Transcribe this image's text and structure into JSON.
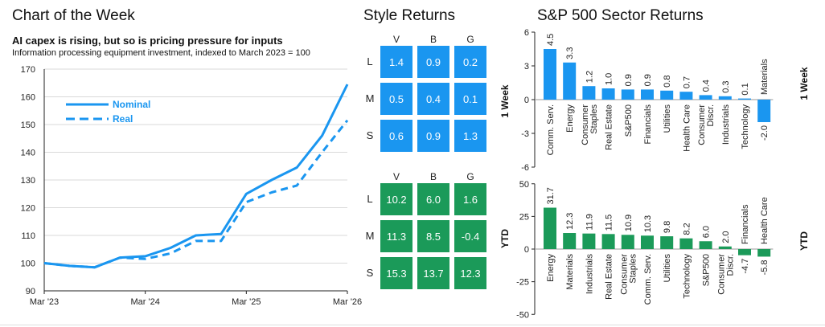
{
  "chart_data": [
    {
      "type": "line",
      "title": "Chart of the Week",
      "subtitle": "AI capex is rising, but so is pricing pressure for inputs",
      "note": "Information processing equipment investment, indexed to March 2023 = 100",
      "ylim": [
        90,
        170
      ],
      "yticks": [
        90,
        100,
        110,
        120,
        130,
        140,
        150,
        160,
        170
      ],
      "xlim": [
        0,
        12
      ],
      "xticks": [
        {
          "x": 0,
          "label": "Mar '23"
        },
        {
          "x": 4,
          "label": "Mar '24"
        },
        {
          "x": 8,
          "label": "Mar '25"
        },
        {
          "x": 12,
          "label": "Mar '26"
        }
      ],
      "legend_position": "top-left",
      "series": [
        {
          "name": "Nominal",
          "style": "solid",
          "color": "#1a96f0",
          "x": [
            0,
            1,
            2,
            3,
            4,
            5,
            6,
            7,
            8,
            9,
            10,
            11,
            12
          ],
          "values": [
            100,
            99,
            98.5,
            102,
            102.5,
            105.5,
            110,
            110.5,
            125,
            130,
            134.5,
            146,
            164.5
          ]
        },
        {
          "name": "Real",
          "style": "dashed",
          "color": "#1a96f0",
          "x": [
            0,
            1,
            2,
            3,
            4,
            5,
            6,
            7,
            8,
            9,
            10,
            11,
            12
          ],
          "values": [
            100,
            99,
            98.5,
            102,
            101.5,
            103.5,
            108,
            108,
            122,
            125.5,
            128,
            140,
            151.5
          ]
        }
      ]
    },
    {
      "type": "table",
      "title": "Style Returns",
      "columns": [
        "V",
        "B",
        "G"
      ],
      "rows": [
        "L",
        "M",
        "S"
      ],
      "panels": [
        {
          "label": "1 Week",
          "color": "#1a96f0",
          "values": [
            [
              "1.4",
              "0.9",
              "0.2"
            ],
            [
              "0.5",
              "0.4",
              "0.1"
            ],
            [
              "0.6",
              "0.9",
              "1.3"
            ]
          ]
        },
        {
          "label": "YTD",
          "color": "#1b9a59",
          "values": [
            [
              "10.2",
              "6.0",
              "1.6"
            ],
            [
              "11.3",
              "8.5",
              "-0.4"
            ],
            [
              "15.3",
              "13.7",
              "12.3"
            ]
          ]
        }
      ]
    },
    {
      "type": "bar",
      "title": "S&P 500 Sector Returns",
      "panels": [
        {
          "label": "1 Week",
          "color": "#1a96f0",
          "ylim": [
            -6,
            6
          ],
          "yticks": [
            -6,
            -3,
            0,
            3,
            6
          ],
          "categories": [
            "Comm. Serv.",
            "Energy",
            "Consumer Staples",
            "Real Estate",
            "S&P500",
            "Financials",
            "Utilities",
            "Health Care",
            "Consumer Discr.",
            "Industrials",
            "Technology",
            "Materials"
          ],
          "category_lines": [
            [
              "Comm. Serv."
            ],
            [
              "Energy"
            ],
            [
              "Consumer",
              "Staples"
            ],
            [
              "Real Estate"
            ],
            [
              "S&P500"
            ],
            [
              "Financials"
            ],
            [
              "Utilities"
            ],
            [
              "Health Care"
            ],
            [
              "Consumer",
              "Discr."
            ],
            [
              "Industrials"
            ],
            [
              "Technology"
            ],
            [
              "Materials"
            ]
          ],
          "values": [
            4.5,
            3.3,
            1.2,
            1.0,
            0.9,
            0.9,
            0.8,
            0.7,
            0.4,
            0.3,
            0.1,
            -2.0
          ],
          "value_labels": [
            "4.5",
            "3.3",
            "1.2",
            "1.0",
            "0.9",
            "0.9",
            "0.8",
            "0.7",
            "0.4",
            "0.3",
            "0.1",
            "-2.0"
          ]
        },
        {
          "label": "YTD",
          "color": "#1b9a59",
          "ylim": [
            -50,
            50
          ],
          "yticks": [
            -50,
            -25,
            0,
            25,
            50
          ],
          "categories": [
            "Energy",
            "Materials",
            "Industrials",
            "Real Estate",
            "Consumer Staples",
            "Comm. Serv.",
            "Utilities",
            "Technology",
            "S&P500",
            "Consumer Discr.",
            "Financials",
            "Health Care"
          ],
          "category_lines": [
            [
              "Energy"
            ],
            [
              "Materials"
            ],
            [
              "Industrials"
            ],
            [
              "Real Estate"
            ],
            [
              "Consumer",
              "Staples"
            ],
            [
              "Comm. Serv."
            ],
            [
              "Utilities"
            ],
            [
              "Technology"
            ],
            [
              "S&P500"
            ],
            [
              "Consumer",
              "Discr."
            ],
            [
              "Financials"
            ],
            [
              "Health Care"
            ]
          ],
          "values": [
            31.7,
            12.3,
            11.9,
            11.5,
            10.9,
            10.3,
            9.8,
            8.2,
            6.0,
            2.0,
            -4.7,
            -5.8
          ],
          "value_labels": [
            "31.7",
            "12.3",
            "11.9",
            "11.5",
            "10.9",
            "10.3",
            "9.8",
            "8.2",
            "6.0",
            "2.0",
            "-4.7",
            "-5.8"
          ]
        }
      ]
    }
  ]
}
